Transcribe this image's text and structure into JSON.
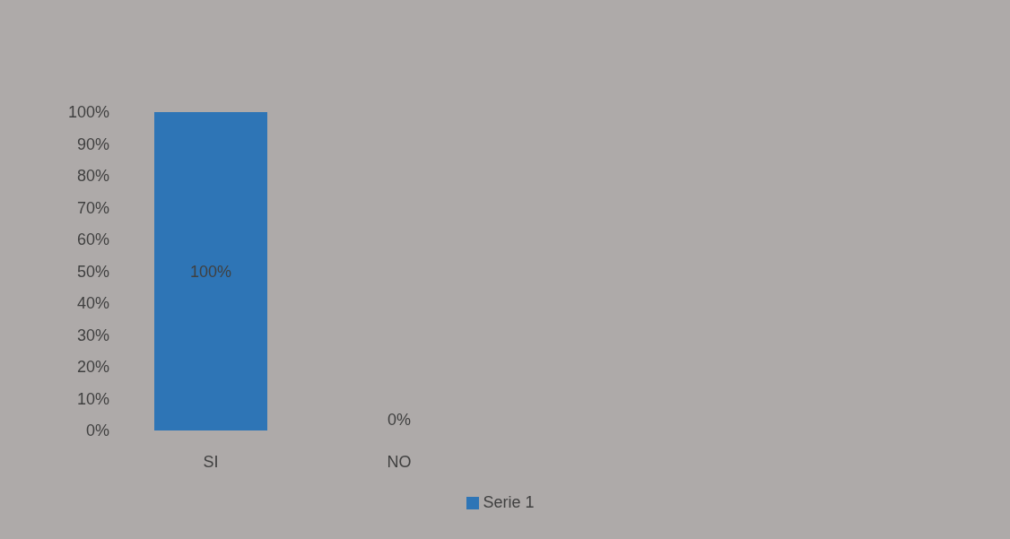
{
  "chart_data": {
    "type": "bar",
    "categories": [
      "SI",
      "NO"
    ],
    "series": [
      {
        "name": "Serie 1",
        "color": "#2e75b6",
        "values": [
          100,
          0
        ],
        "value_labels": [
          "100%",
          "0%"
        ]
      }
    ],
    "ylim": [
      0,
      100
    ],
    "yticks": [
      {
        "value": 0,
        "label": "0%"
      },
      {
        "value": 10,
        "label": "10%"
      },
      {
        "value": 20,
        "label": "20%"
      },
      {
        "value": 30,
        "label": "30%"
      },
      {
        "value": 40,
        "label": "40%"
      },
      {
        "value": 50,
        "label": "50%"
      },
      {
        "value": 60,
        "label": "60%"
      },
      {
        "value": 70,
        "label": "70%"
      },
      {
        "value": 80,
        "label": "80%"
      },
      {
        "value": 90,
        "label": "90%"
      },
      {
        "value": 100,
        "label": "100%"
      }
    ],
    "grid": false,
    "legend": "bottom"
  }
}
